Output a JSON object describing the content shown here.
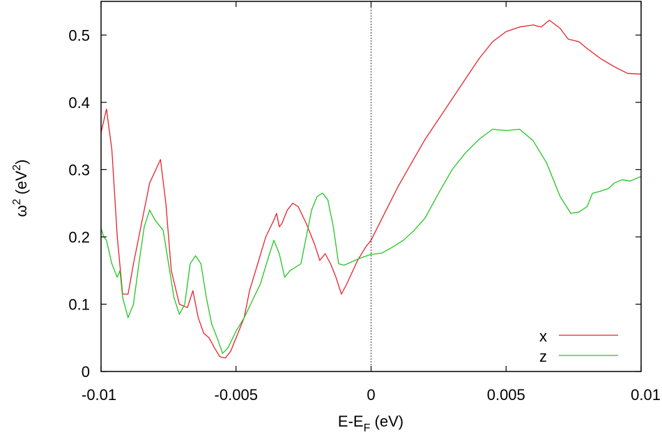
{
  "chart_data": {
    "type": "line",
    "xlabel_main": "E-E",
    "xlabel_sub": "F",
    "xlabel_tail": " (eV)",
    "ylabel_main": "ω",
    "ylabel_sup": "2",
    "ylabel_tail_open": " (eV",
    "ylabel_tail_sup": "2",
    "ylabel_tail_close": ")",
    "xlim": [
      -0.01,
      0.01
    ],
    "ylim": [
      0,
      0.55
    ],
    "x_ticks": [
      -0.01,
      -0.005,
      0,
      0.005,
      0.01
    ],
    "x_tick_labels": [
      "-0.01",
      "-0.005",
      "0",
      "0.005",
      "0.01"
    ],
    "y_ticks": [
      0,
      0.1,
      0.2,
      0.3,
      0.4,
      0.5
    ],
    "y_tick_labels": [
      "0",
      "0.1",
      "0.2",
      "0.3",
      "0.4",
      "0.5"
    ],
    "grid": false,
    "reference_line_x": 0,
    "legend_position": "bottom-right",
    "series": [
      {
        "name": "x",
        "color": "#e8202a",
        "points": [
          [
            -0.01,
            0.355
          ],
          [
            -0.0098,
            0.39
          ],
          [
            -0.0096,
            0.33
          ],
          [
            -0.0094,
            0.2
          ],
          [
            -0.0092,
            0.115
          ],
          [
            -0.009,
            0.115
          ],
          [
            -0.0088,
            0.16
          ],
          [
            -0.0085,
            0.22
          ],
          [
            -0.0082,
            0.28
          ],
          [
            -0.0078,
            0.315
          ],
          [
            -0.0076,
            0.25
          ],
          [
            -0.0074,
            0.15
          ],
          [
            -0.0071,
            0.1
          ],
          [
            -0.0068,
            0.095
          ],
          [
            -0.0066,
            0.12
          ],
          [
            -0.0064,
            0.08
          ],
          [
            -0.0062,
            0.057
          ],
          [
            -0.006,
            0.05
          ],
          [
            -0.0058,
            0.035
          ],
          [
            -0.0056,
            0.022
          ],
          [
            -0.0054,
            0.02
          ],
          [
            -0.0052,
            0.03
          ],
          [
            -0.005,
            0.05
          ],
          [
            -0.0047,
            0.08
          ],
          [
            -0.0045,
            0.12
          ],
          [
            -0.0042,
            0.16
          ],
          [
            -0.0039,
            0.2
          ],
          [
            -0.0036,
            0.225
          ],
          [
            -0.0035,
            0.235
          ],
          [
            -0.0034,
            0.215
          ],
          [
            -0.0033,
            0.22
          ],
          [
            -0.0031,
            0.24
          ],
          [
            -0.0029,
            0.25
          ],
          [
            -0.0027,
            0.245
          ],
          [
            -0.0024,
            0.22
          ],
          [
            -0.0021,
            0.19
          ],
          [
            -0.0019,
            0.165
          ],
          [
            -0.0017,
            0.175
          ],
          [
            -0.0015,
            0.16
          ],
          [
            -0.0013,
            0.14
          ],
          [
            -0.0011,
            0.115
          ],
          [
            -0.0009,
            0.13
          ],
          [
            -0.0005,
            0.165
          ],
          [
            -0.0002,
            0.185
          ],
          [
            0.0,
            0.195
          ],
          [
            0.0005,
            0.235
          ],
          [
            0.001,
            0.275
          ],
          [
            0.0015,
            0.31
          ],
          [
            0.002,
            0.345
          ],
          [
            0.0025,
            0.375
          ],
          [
            0.003,
            0.405
          ],
          [
            0.0035,
            0.435
          ],
          [
            0.004,
            0.465
          ],
          [
            0.0045,
            0.49
          ],
          [
            0.005,
            0.505
          ],
          [
            0.0055,
            0.512
          ],
          [
            0.006,
            0.515
          ],
          [
            0.0063,
            0.512
          ],
          [
            0.0066,
            0.522
          ],
          [
            0.007,
            0.51
          ],
          [
            0.0073,
            0.494
          ],
          [
            0.0077,
            0.49
          ],
          [
            0.008,
            0.48
          ],
          [
            0.0085,
            0.465
          ],
          [
            0.009,
            0.453
          ],
          [
            0.0095,
            0.443
          ],
          [
            0.01,
            0.442
          ]
        ]
      },
      {
        "name": "z",
        "color": "#22c422",
        "points": [
          [
            -0.01,
            0.213
          ],
          [
            -0.0099,
            0.2
          ],
          [
            -0.0098,
            0.195
          ],
          [
            -0.0096,
            0.16
          ],
          [
            -0.0094,
            0.14
          ],
          [
            -0.0093,
            0.15
          ],
          [
            -0.0092,
            0.11
          ],
          [
            -0.009,
            0.08
          ],
          [
            -0.0088,
            0.1
          ],
          [
            -0.0086,
            0.16
          ],
          [
            -0.0084,
            0.215
          ],
          [
            -0.0082,
            0.24
          ],
          [
            -0.008,
            0.225
          ],
          [
            -0.0077,
            0.21
          ],
          [
            -0.0075,
            0.16
          ],
          [
            -0.0073,
            0.11
          ],
          [
            -0.0071,
            0.085
          ],
          [
            -0.0069,
            0.1
          ],
          [
            -0.0067,
            0.16
          ],
          [
            -0.0065,
            0.172
          ],
          [
            -0.0063,
            0.16
          ],
          [
            -0.0061,
            0.11
          ],
          [
            -0.0059,
            0.07
          ],
          [
            -0.0057,
            0.05
          ],
          [
            -0.0055,
            0.027
          ],
          [
            -0.0053,
            0.035
          ],
          [
            -0.005,
            0.06
          ],
          [
            -0.0047,
            0.08
          ],
          [
            -0.0044,
            0.105
          ],
          [
            -0.0041,
            0.13
          ],
          [
            -0.0038,
            0.17
          ],
          [
            -0.0036,
            0.195
          ],
          [
            -0.0034,
            0.175
          ],
          [
            -0.0032,
            0.14
          ],
          [
            -0.003,
            0.15
          ],
          [
            -0.0028,
            0.155
          ],
          [
            -0.0026,
            0.16
          ],
          [
            -0.0024,
            0.2
          ],
          [
            -0.0022,
            0.24
          ],
          [
            -0.002,
            0.26
          ],
          [
            -0.0018,
            0.265
          ],
          [
            -0.0016,
            0.255
          ],
          [
            -0.0014,
            0.215
          ],
          [
            -0.0012,
            0.16
          ],
          [
            -0.001,
            0.158
          ],
          [
            -0.0006,
            0.165
          ],
          [
            -0.0003,
            0.17
          ],
          [
            0.0,
            0.174
          ],
          [
            0.0004,
            0.176
          ],
          [
            0.0008,
            0.185
          ],
          [
            0.0012,
            0.195
          ],
          [
            0.0016,
            0.21
          ],
          [
            0.002,
            0.228
          ],
          [
            0.0025,
            0.265
          ],
          [
            0.003,
            0.3
          ],
          [
            0.0035,
            0.325
          ],
          [
            0.004,
            0.345
          ],
          [
            0.0045,
            0.36
          ],
          [
            0.005,
            0.358
          ],
          [
            0.0055,
            0.36
          ],
          [
            0.006,
            0.343
          ],
          [
            0.0065,
            0.31
          ],
          [
            0.007,
            0.26
          ],
          [
            0.0074,
            0.235
          ],
          [
            0.0077,
            0.237
          ],
          [
            0.008,
            0.245
          ],
          [
            0.0082,
            0.265
          ],
          [
            0.0085,
            0.268
          ],
          [
            0.0088,
            0.272
          ],
          [
            0.009,
            0.28
          ],
          [
            0.0093,
            0.285
          ],
          [
            0.0096,
            0.283
          ],
          [
            0.01,
            0.29
          ]
        ]
      }
    ]
  }
}
